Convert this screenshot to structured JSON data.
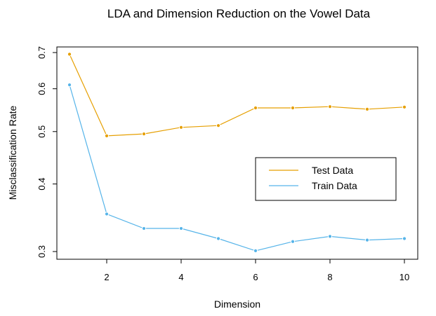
{
  "chart_data": {
    "type": "line",
    "title": "LDA and Dimension Reduction on the Vowel Data",
    "xlabel": "Dimension",
    "ylabel": "Misclassification Rate",
    "x": [
      1,
      2,
      3,
      4,
      5,
      6,
      7,
      8,
      9,
      10
    ],
    "xticks": [
      "2",
      "4",
      "6",
      "8",
      "10"
    ],
    "yticks": [
      "0.3",
      "0.4",
      "0.5",
      "0.6",
      "0.7"
    ],
    "ylim": [
      0.3,
      0.7
    ],
    "xlim": [
      1,
      10
    ],
    "y_scale": "log",
    "grid": false,
    "legend_position": "right",
    "series": [
      {
        "name": "Test Data",
        "color": "#E69F00",
        "values": [
          0.695,
          0.491,
          0.495,
          0.509,
          0.513,
          0.553,
          0.553,
          0.556,
          0.55,
          0.555
        ]
      },
      {
        "name": "Train Data",
        "color": "#56B4E9",
        "values": [
          0.61,
          0.352,
          0.331,
          0.331,
          0.317,
          0.301,
          0.313,
          0.32,
          0.315,
          0.317
        ]
      }
    ]
  }
}
